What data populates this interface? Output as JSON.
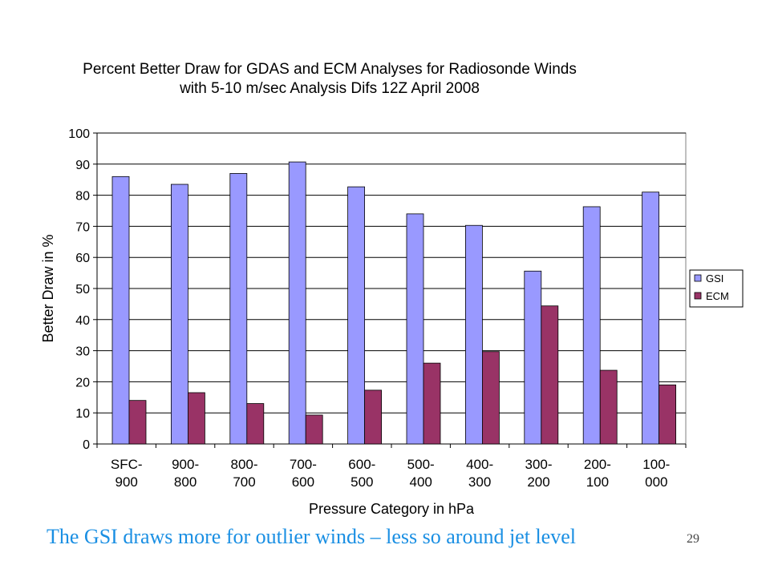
{
  "chart_data": {
    "type": "bar",
    "title_lines": [
      "Percent Better Draw for GDAS and ECM Analyses for Radiosonde Winds",
      "with 5-10 m/sec Analysis Difs 12Z April 2008"
    ],
    "categories": [
      [
        "SFC-",
        "900"
      ],
      [
        "900-",
        "800"
      ],
      [
        "800-",
        "700"
      ],
      [
        "700-",
        "600"
      ],
      [
        "600-",
        "500"
      ],
      [
        "500-",
        "400"
      ],
      [
        "400-",
        "300"
      ],
      [
        "300-",
        "200"
      ],
      [
        "200-",
        "100"
      ],
      [
        "100-",
        "000"
      ]
    ],
    "series": [
      {
        "name": "GSI",
        "color": "#9999ff",
        "values": [
          86,
          83.5,
          87,
          90.7,
          82.7,
          74,
          70.3,
          55.6,
          76.3,
          81
        ]
      },
      {
        "name": "ECM",
        "color": "#993366",
        "values": [
          14,
          16.5,
          13,
          9.3,
          17.3,
          26,
          29.7,
          44.4,
          23.7,
          19
        ]
      }
    ],
    "xlabel": "Pressure Category in hPa",
    "ylabel": "Better Draw in %",
    "ylim": [
      0,
      100
    ],
    "yticks": [
      0,
      10,
      20,
      30,
      40,
      50,
      60,
      70,
      80,
      90,
      100
    ],
    "grid": true,
    "legend_position": "right"
  },
  "caption": "The GSI draws more for outlier winds – less so around jet level",
  "page_number": "29"
}
